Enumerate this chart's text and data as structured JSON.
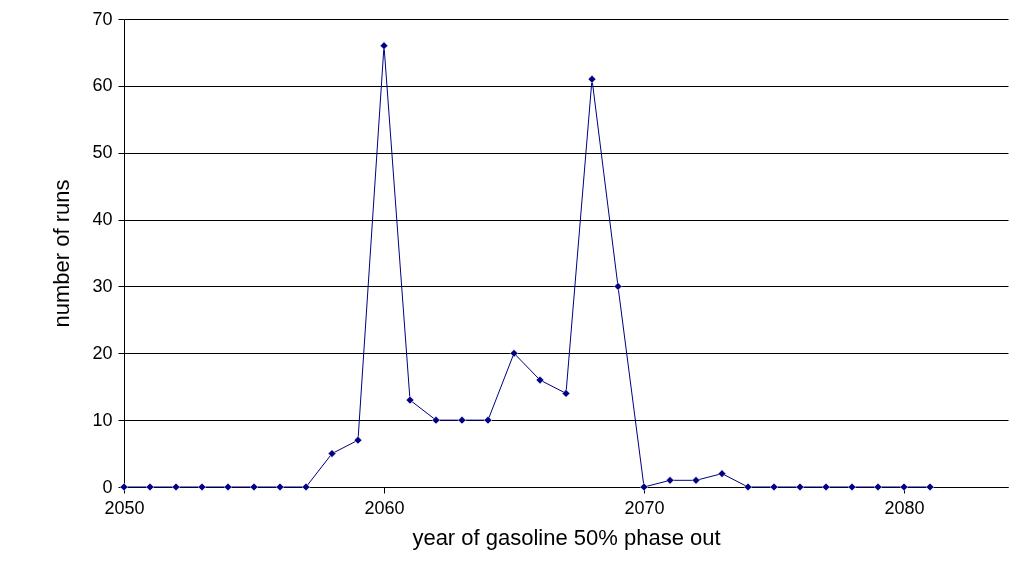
{
  "chart_data": {
    "type": "line",
    "xlabel": "year of gasoline 50% phase out",
    "ylabel": "number of runs",
    "x": [
      2050,
      2051,
      2052,
      2053,
      2054,
      2055,
      2056,
      2057,
      2058,
      2059,
      2060,
      2061,
      2062,
      2063,
      2064,
      2065,
      2066,
      2067,
      2068,
      2069,
      2070,
      2071,
      2072,
      2073,
      2074,
      2075,
      2076,
      2077,
      2078,
      2079,
      2080,
      2081
    ],
    "series": [
      {
        "color": "#000080",
        "values": [
          0,
          0,
          0,
          0,
          0,
          0,
          0,
          0,
          5,
          7,
          66,
          13,
          10,
          10,
          10,
          20,
          16,
          14,
          61,
          30,
          0,
          1,
          1,
          2,
          0,
          0,
          0,
          0,
          0,
          0,
          0,
          0
        ]
      }
    ],
    "xlim": [
      2050,
      2084
    ],
    "xticks": [
      2050,
      2060,
      2070,
      2080
    ],
    "ylim": [
      0,
      70
    ],
    "yticks": [
      0,
      10,
      20,
      30,
      40,
      50,
      60,
      70
    ],
    "grid": "y",
    "marker": "diamond"
  }
}
